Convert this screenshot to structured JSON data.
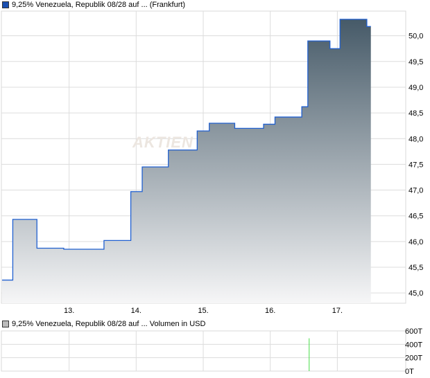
{
  "chart_data": [
    {
      "type": "area",
      "legend": "9,25% Venezuela, Republik 08/28 auf ... (Frankfurt)",
      "legend_color": "#1a4fb0",
      "line_color": "#1f5fd0",
      "fill_top": "#465a68",
      "fill_bottom": "#f6f6f7",
      "watermark": "AKTIEN",
      "step": true,
      "x": [
        12.0,
        12.16,
        12.52,
        12.92,
        13.52,
        13.92,
        14.09,
        14.48,
        14.91,
        15.09,
        15.47,
        15.9,
        16.07,
        16.47,
        16.56,
        16.89,
        17.04,
        17.44,
        17.5
      ],
      "y": [
        45.25,
        46.43,
        45.87,
        45.85,
        46.02,
        46.97,
        47.45,
        47.78,
        48.15,
        48.3,
        48.2,
        48.28,
        48.42,
        48.62,
        49.9,
        49.75,
        50.32,
        50.18,
        50.18
      ],
      "xticks": [
        13,
        14,
        15,
        16,
        17
      ],
      "xtick_labels": [
        "13.",
        "14.",
        "15.",
        "16.",
        "17."
      ],
      "yticks": [
        45.0,
        45.5,
        46.0,
        46.5,
        47.0,
        47.5,
        48.0,
        48.5,
        49.0,
        49.5,
        50.0
      ],
      "ytick_labels": [
        "45,0",
        "45,5",
        "46,0",
        "46,5",
        "47,0",
        "47,5",
        "48,0",
        "48,5",
        "49,0",
        "49,5",
        "50,0"
      ],
      "xlim": [
        11.99,
        18.02
      ],
      "ylim": [
        44.8,
        50.48
      ],
      "grid": true
    },
    {
      "type": "bar",
      "legend": "9,25% Venezuela, Republik 08/28 auf ... Volumen in USD",
      "legend_color": "#bbbbbb",
      "bar_color": "#44dd44",
      "x": [
        16.58
      ],
      "values": [
        490
      ],
      "yticks": [
        0,
        200,
        400,
        600
      ],
      "ytick_labels": [
        "0T",
        "200T",
        "400T",
        "600T"
      ],
      "ylim": [
        0,
        600
      ],
      "grid": true
    }
  ]
}
